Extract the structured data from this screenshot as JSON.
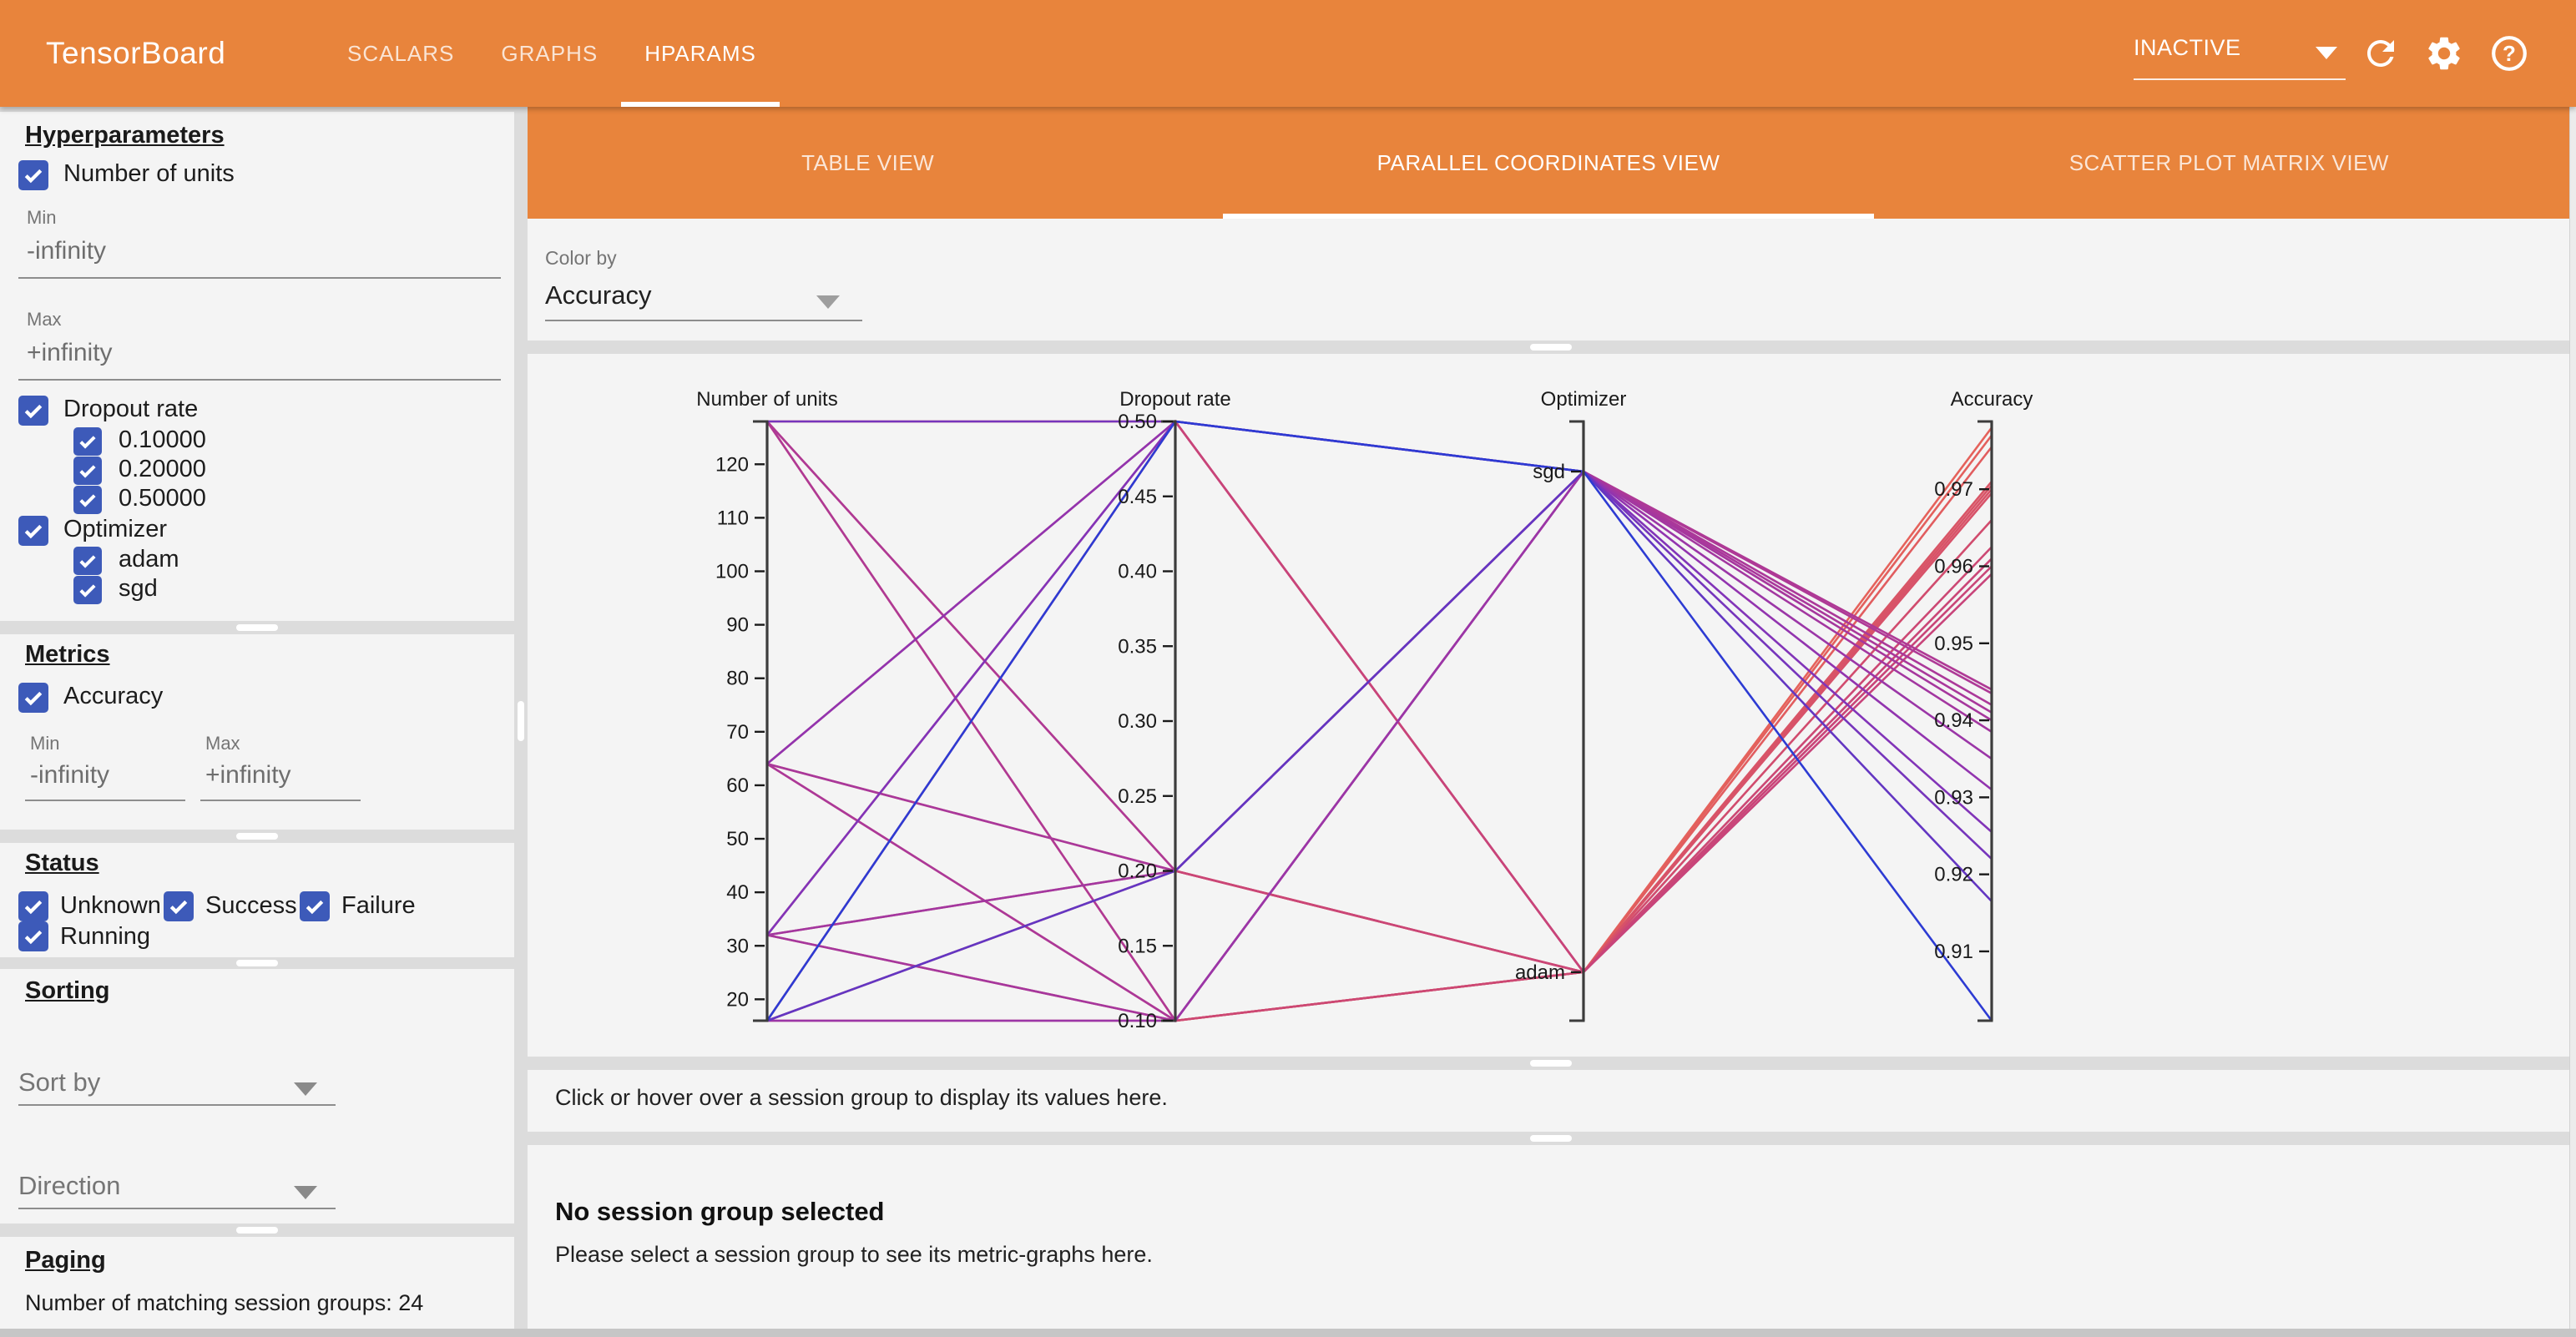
{
  "header": {
    "logo": "TensorBoard",
    "nav_tabs": [
      "SCALARS",
      "GRAPHS",
      "HPARAMS"
    ],
    "active_nav": "HPARAMS",
    "run_status": "INACTIVE",
    "icons": [
      "refresh-icon",
      "settings-gear-icon",
      "help-icon"
    ]
  },
  "sidebar": {
    "hyperparameters": {
      "title": "Hyperparameters",
      "params": [
        {
          "label": "Number of units",
          "checked": true
        },
        {
          "label": "Dropout rate",
          "checked": true,
          "values": [
            "0.10000",
            "0.20000",
            "0.50000"
          ]
        },
        {
          "label": "Optimizer",
          "checked": true,
          "values": [
            "adam",
            "sgd"
          ]
        }
      ],
      "min_label": "Min",
      "min_value": "-infinity",
      "max_label": "Max",
      "max_value": "+infinity"
    },
    "metrics": {
      "title": "Metrics",
      "metric_label": "Accuracy",
      "checked": true,
      "min_label": "Min",
      "min_value": "-infinity",
      "max_label": "Max",
      "max_value": "+infinity"
    },
    "status": {
      "title": "Status",
      "options": [
        "Unknown",
        "Success",
        "Failure",
        "Running"
      ]
    },
    "sorting": {
      "title": "Sorting",
      "sort_by_placeholder": "Sort by",
      "direction_placeholder": "Direction"
    },
    "paging": {
      "title": "Paging",
      "count_text": "Number of matching session groups: 24"
    }
  },
  "main": {
    "view_tabs": [
      "TABLE VIEW",
      "PARALLEL COORDINATES VIEW",
      "SCATTER PLOT MATRIX VIEW"
    ],
    "active_view": "PARALLEL COORDINATES VIEW",
    "color_by_label": "Color by",
    "color_by_value": "Accuracy",
    "hint_text": "Click or hover over a session group to display its values here.",
    "no_selection_title": "No session group selected",
    "no_selection_body": "Please select a session group to see its metric-graphs here."
  },
  "chart_data": {
    "type": "parallel_coordinates",
    "color_by": "Accuracy",
    "color_scale": {
      "domain": [
        0.901,
        0.9788
      ],
      "stops": [
        [
          0,
          "#2d3bd3"
        ],
        [
          0.35,
          "#8c33b5"
        ],
        [
          0.62,
          "#bb3b8b"
        ],
        [
          0.82,
          "#cf4a70"
        ],
        [
          1,
          "#e6635a"
        ]
      ]
    },
    "axes": [
      {
        "name": "units",
        "title": "Number of units",
        "type": "linear",
        "domain": [
          16,
          128
        ],
        "ticks": [
          20,
          30,
          40,
          50,
          60,
          70,
          80,
          90,
          100,
          110,
          120
        ]
      },
      {
        "name": "dropout",
        "title": "Dropout rate",
        "type": "linear",
        "domain": [
          0.1,
          0.5
        ],
        "ticks": [
          0.1,
          0.15,
          0.2,
          0.25,
          0.3,
          0.35,
          0.4,
          0.45,
          0.5
        ],
        "tick_decimals": 2
      },
      {
        "name": "optimizer",
        "title": "Optimizer",
        "type": "categorical",
        "categories": [
          {
            "label": "sgd",
            "f": 0.0836
          },
          {
            "label": "adam",
            "f": 0.919
          }
        ]
      },
      {
        "name": "accuracy",
        "title": "Accuracy",
        "type": "linear",
        "domain": [
          0.901,
          0.9788
        ],
        "ticks": [
          0.91,
          0.92,
          0.93,
          0.94,
          0.95,
          0.96,
          0.97
        ],
        "tick_decimals": 2
      }
    ],
    "sessions": [
      {
        "units": 128,
        "dropout": 0.1,
        "optimizer": "adam",
        "accuracy": 0.978
      },
      {
        "units": 128,
        "dropout": 0.2,
        "optimizer": "adam",
        "accuracy": 0.977
      },
      {
        "units": 128,
        "dropout": 0.5,
        "optimizer": "adam",
        "accuracy": 0.9695
      },
      {
        "units": 64,
        "dropout": 0.1,
        "optimizer": "adam",
        "accuracy": 0.9755
      },
      {
        "units": 64,
        "dropout": 0.2,
        "optimizer": "adam",
        "accuracy": 0.971
      },
      {
        "units": 64,
        "dropout": 0.5,
        "optimizer": "adam",
        "accuracy": 0.966
      },
      {
        "units": 32,
        "dropout": 0.1,
        "optimizer": "adam",
        "accuracy": 0.9705
      },
      {
        "units": 32,
        "dropout": 0.2,
        "optimizer": "adam",
        "accuracy": 0.97
      },
      {
        "units": 32,
        "dropout": 0.5,
        "optimizer": "adam",
        "accuracy": 0.96
      },
      {
        "units": 16,
        "dropout": 0.1,
        "optimizer": "adam",
        "accuracy": 0.9625
      },
      {
        "units": 16,
        "dropout": 0.2,
        "optimizer": "adam",
        "accuracy": 0.961
      },
      {
        "units": 16,
        "dropout": 0.5,
        "optimizer": "adam",
        "accuracy": 0.959
      },
      {
        "units": 128,
        "dropout": 0.1,
        "optimizer": "sgd",
        "accuracy": 0.944
      },
      {
        "units": 128,
        "dropout": 0.2,
        "optimizer": "sgd",
        "accuracy": 0.9435
      },
      {
        "units": 128,
        "dropout": 0.5,
        "optimizer": "sgd",
        "accuracy": 0.922
      },
      {
        "units": 64,
        "dropout": 0.1,
        "optimizer": "sgd",
        "accuracy": 0.942
      },
      {
        "units": 64,
        "dropout": 0.2,
        "optimizer": "sgd",
        "accuracy": 0.941
      },
      {
        "units": 64,
        "dropout": 0.5,
        "optimizer": "sgd",
        "accuracy": 0.931
      },
      {
        "units": 32,
        "dropout": 0.1,
        "optimizer": "sgd",
        "accuracy": 0.94
      },
      {
        "units": 32,
        "dropout": 0.2,
        "optimizer": "sgd",
        "accuracy": 0.9385
      },
      {
        "units": 32,
        "dropout": 0.5,
        "optimizer": "sgd",
        "accuracy": 0.9255
      },
      {
        "units": 16,
        "dropout": 0.1,
        "optimizer": "sgd",
        "accuracy": 0.935
      },
      {
        "units": 16,
        "dropout": 0.2,
        "optimizer": "sgd",
        "accuracy": 0.9165
      },
      {
        "units": 16,
        "dropout": 0.5,
        "optimizer": "sgd",
        "accuracy": 0.901
      }
    ]
  }
}
